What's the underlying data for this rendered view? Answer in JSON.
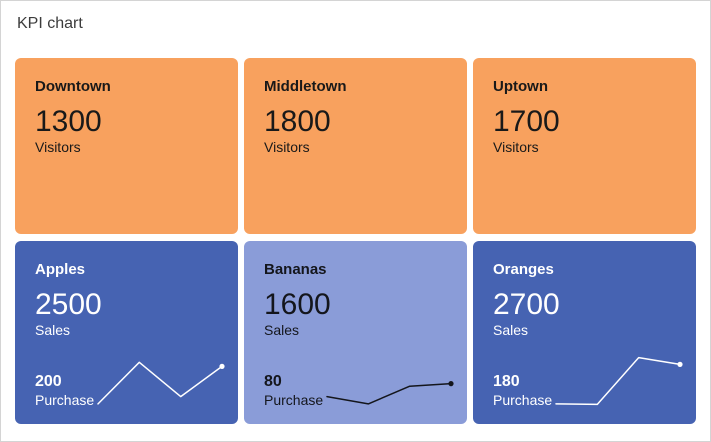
{
  "page": {
    "title": "KPI chart"
  },
  "colors": {
    "tile_orange": "#f8a15e",
    "tile_blue_dark": "#4663b2",
    "tile_blue_light": "#8a9cd8",
    "text_on_orange": "#191919",
    "text_on_blue_dark": "#ffffff",
    "text_on_blue_light": "#14161c",
    "frame_border": "#d4d4d4",
    "title_text": "#3c3c3c"
  },
  "chart_data": {
    "type": "kpi",
    "title": "KPI chart",
    "tiles": [
      {
        "name": "Downtown",
        "value": "1300",
        "metric": "Visitors",
        "theme": "orange"
      },
      {
        "name": "Middletown",
        "value": "1800",
        "metric": "Visitors",
        "theme": "orange"
      },
      {
        "name": "Uptown",
        "value": "1700",
        "metric": "Visitors",
        "theme": "orange"
      },
      {
        "name": "Apples",
        "value": "2500",
        "metric": "Sales",
        "secondary_value": "200",
        "secondary_metric": "Purchase",
        "theme": "blue-dark",
        "sparkline": [
          0.06,
          0.86,
          0.2,
          0.78
        ]
      },
      {
        "name": "Bananas",
        "value": "1600",
        "metric": "Sales",
        "secondary_value": "80",
        "secondary_metric": "Purchase",
        "theme": "blue-light",
        "sparkline": [
          0.2,
          0.06,
          0.4,
          0.45
        ]
      },
      {
        "name": "Oranges",
        "value": "2700",
        "metric": "Sales",
        "secondary_value": "180",
        "secondary_metric": "Purchase",
        "theme": "blue-dark",
        "sparkline": [
          0.06,
          0.05,
          0.95,
          0.82
        ]
      }
    ]
  }
}
